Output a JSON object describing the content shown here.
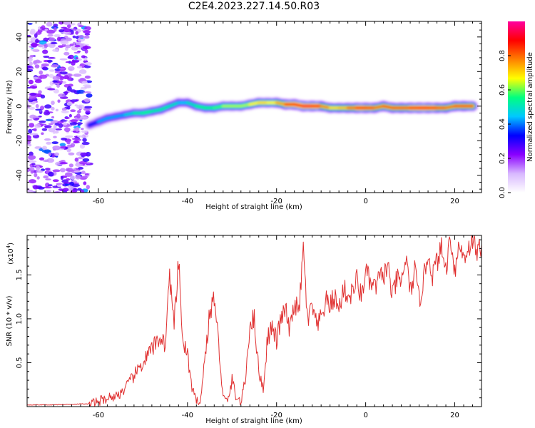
{
  "title": "C2E4.2023.227.14.50.R03",
  "chart_data": [
    {
      "type": "heatmap",
      "xlabel": "Height of straight line (km)",
      "ylabel": "Frequency (Hz)",
      "xlim": [
        -76,
        26
      ],
      "ylim": [
        -50,
        49
      ],
      "xticks": [
        -60,
        -40,
        -20,
        0,
        20
      ],
      "yticks": [
        -40,
        -20,
        0,
        20,
        40
      ],
      "colorbar": {
        "label": "Normalized spectral amplitude",
        "range": [
          0.0,
          1.0
        ],
        "ticks": [
          0.0,
          0.2,
          0.4,
          0.6,
          0.8
        ],
        "colors": [
          "#ffffff",
          "#d8b8ff",
          "#8a00ff",
          "#0000ff",
          "#00c8ff",
          "#00ff80",
          "#ffff00",
          "#ff8000",
          "#ff0000",
          "#ff00a0"
        ]
      },
      "ridge": [
        {
          "x": -62,
          "f": -11,
          "a": 0.3
        },
        {
          "x": -60,
          "f": -9,
          "a": 0.4
        },
        {
          "x": -58,
          "f": -7,
          "a": 0.45
        },
        {
          "x": -56,
          "f": -6,
          "a": 0.4
        },
        {
          "x": -54,
          "f": -5,
          "a": 0.45
        },
        {
          "x": -52,
          "f": -4,
          "a": 0.5
        },
        {
          "x": -50,
          "f": -4,
          "a": 0.55
        },
        {
          "x": -48,
          "f": -3,
          "a": 0.55
        },
        {
          "x": -46,
          "f": -2,
          "a": 0.5
        },
        {
          "x": -44,
          "f": 0,
          "a": 0.55
        },
        {
          "x": -42,
          "f": 2,
          "a": 0.45
        },
        {
          "x": -40,
          "f": 2,
          "a": 0.45
        },
        {
          "x": -38,
          "f": 0,
          "a": 0.55
        },
        {
          "x": -36,
          "f": -1,
          "a": 0.55
        },
        {
          "x": -34,
          "f": -1,
          "a": 0.55
        },
        {
          "x": -32,
          "f": 0,
          "a": 0.6
        },
        {
          "x": -30,
          "f": 0,
          "a": 0.65
        },
        {
          "x": -28,
          "f": 0,
          "a": 0.6
        },
        {
          "x": -26,
          "f": 1,
          "a": 0.65
        },
        {
          "x": -24,
          "f": 2,
          "a": 0.7
        },
        {
          "x": -22,
          "f": 2,
          "a": 0.7
        },
        {
          "x": -20,
          "f": 2,
          "a": 0.65
        },
        {
          "x": -18,
          "f": 1,
          "a": 0.85
        },
        {
          "x": -16,
          "f": 1,
          "a": 0.9
        },
        {
          "x": -14,
          "f": 0,
          "a": 0.9
        },
        {
          "x": -12,
          "f": 0,
          "a": 0.95
        },
        {
          "x": -10,
          "f": 0,
          "a": 0.85
        },
        {
          "x": -8,
          "f": -1,
          "a": 0.7
        },
        {
          "x": -6,
          "f": -1,
          "a": 0.7
        },
        {
          "x": -4,
          "f": -1,
          "a": 0.75
        },
        {
          "x": -2,
          "f": -1,
          "a": 0.85
        },
        {
          "x": 0,
          "f": -1,
          "a": 0.9
        },
        {
          "x": 2,
          "f": -1,
          "a": 0.8
        },
        {
          "x": 4,
          "f": 0,
          "a": 0.8
        },
        {
          "x": 6,
          "f": -1,
          "a": 0.85
        },
        {
          "x": 8,
          "f": -1,
          "a": 0.8
        },
        {
          "x": 10,
          "f": -1,
          "a": 0.85
        },
        {
          "x": 12,
          "f": -1,
          "a": 0.9
        },
        {
          "x": 14,
          "f": -1,
          "a": 0.9
        },
        {
          "x": 16,
          "f": -1,
          "a": 0.85
        },
        {
          "x": 18,
          "f": -1,
          "a": 0.8
        },
        {
          "x": 20,
          "f": 0,
          "a": 0.8
        },
        {
          "x": 22,
          "f": 0,
          "a": 0.85
        },
        {
          "x": 24,
          "f": 0,
          "a": 0.8
        }
      ],
      "noise_region": {
        "x": [
          -76,
          -62
        ],
        "f": [
          -50,
          49
        ],
        "a_max": 0.35
      }
    },
    {
      "type": "line",
      "xlabel": "Height of straight line (km)",
      "ylabel": "SNR (10 * v/v)",
      "y_multiplier": "(x10",
      "y_multiplier_exp": "4",
      "y_multiplier_close": ")",
      "xlim": [
        -76,
        26
      ],
      "ylim": [
        0.0,
        1.95
      ],
      "xticks": [
        -60,
        -40,
        -20,
        0,
        20
      ],
      "yticks": [
        0.5,
        1.0,
        1.5
      ],
      "ytick_labels": [
        "0.5",
        "1.0",
        "1.5"
      ],
      "series": [
        {
          "color": "#e03030",
          "x": [
            -76,
            -70,
            -64,
            -62,
            -60,
            -58,
            -56,
            -54,
            -52,
            -50,
            -48,
            -46,
            -45,
            -44,
            -43,
            -42,
            -41,
            -40,
            -39,
            -38,
            -37,
            -36,
            -35,
            -34,
            -33,
            -32,
            -31,
            -30,
            -29,
            -28,
            -27,
            -26,
            -25,
            -24,
            -23,
            -22,
            -21,
            -20,
            -19,
            -18,
            -17,
            -16,
            -15,
            -14,
            -13,
            -12,
            -11,
            -10,
            -9,
            -8,
            -7,
            -6,
            -5,
            -4,
            -3,
            -2,
            -1,
            0,
            1,
            2,
            3,
            4,
            5,
            6,
            7,
            8,
            9,
            10,
            11,
            12,
            13,
            14,
            15,
            16,
            17,
            18,
            19,
            20,
            21,
            22,
            23,
            24,
            25,
            26
          ],
          "y": [
            0.02,
            0.02,
            0.03,
            0.03,
            0.06,
            0.1,
            0.12,
            0.2,
            0.35,
            0.5,
            0.65,
            0.8,
            0.7,
            1.5,
            0.9,
            1.65,
            0.7,
            0.6,
            0.2,
            0.05,
            0.1,
            0.6,
            1.05,
            1.25,
            0.7,
            0.1,
            0.05,
            0.3,
            0.1,
            0.05,
            0.3,
            0.95,
            1.0,
            0.4,
            0.2,
            0.8,
            0.9,
            0.75,
            1.0,
            1.1,
            0.85,
            1.2,
            1.05,
            1.8,
            0.95,
            1.15,
            0.9,
            1.0,
            1.2,
            1.15,
            1.25,
            1.1,
            1.35,
            1.25,
            1.3,
            1.45,
            1.25,
            1.55,
            1.4,
            1.35,
            1.45,
            1.5,
            1.6,
            1.25,
            1.45,
            1.4,
            1.7,
            1.3,
            1.55,
            1.2,
            1.45,
            1.75,
            1.5,
            1.65,
            1.8,
            1.55,
            1.95,
            1.55,
            1.85,
            1.7,
            1.8,
            1.9,
            1.75,
            1.85
          ]
        }
      ]
    }
  ]
}
